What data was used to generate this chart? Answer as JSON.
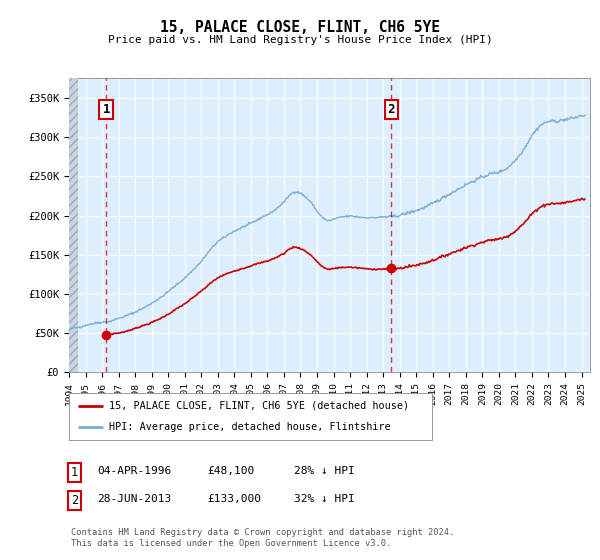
{
  "title": "15, PALACE CLOSE, FLINT, CH6 5YE",
  "subtitle": "Price paid vs. HM Land Registry's House Price Index (HPI)",
  "legend_label_red": "15, PALACE CLOSE, FLINT, CH6 5YE (detached house)",
  "legend_label_blue": "HPI: Average price, detached house, Flintshire",
  "annotation1_date": "04-APR-1996",
  "annotation1_price": "£48,100",
  "annotation1_pct": "28% ↓ HPI",
  "annotation2_date": "28-JUN-2013",
  "annotation2_price": "£133,000",
  "annotation2_pct": "32% ↓ HPI",
  "footer": "Contains HM Land Registry data © Crown copyright and database right 2024.\nThis data is licensed under the Open Government Licence v3.0.",
  "sale1_year": 1996.25,
  "sale1_price": 48100,
  "sale2_year": 2013.5,
  "sale2_price": 133000,
  "xmin": 1994,
  "xmax": 2025.5,
  "ymin": 0,
  "ymax": 375000,
  "yticks": [
    0,
    50000,
    100000,
    150000,
    200000,
    250000,
    300000,
    350000
  ],
  "background_color": "#ddeeff",
  "red_color": "#cc0000",
  "blue_color": "#7aafd4"
}
